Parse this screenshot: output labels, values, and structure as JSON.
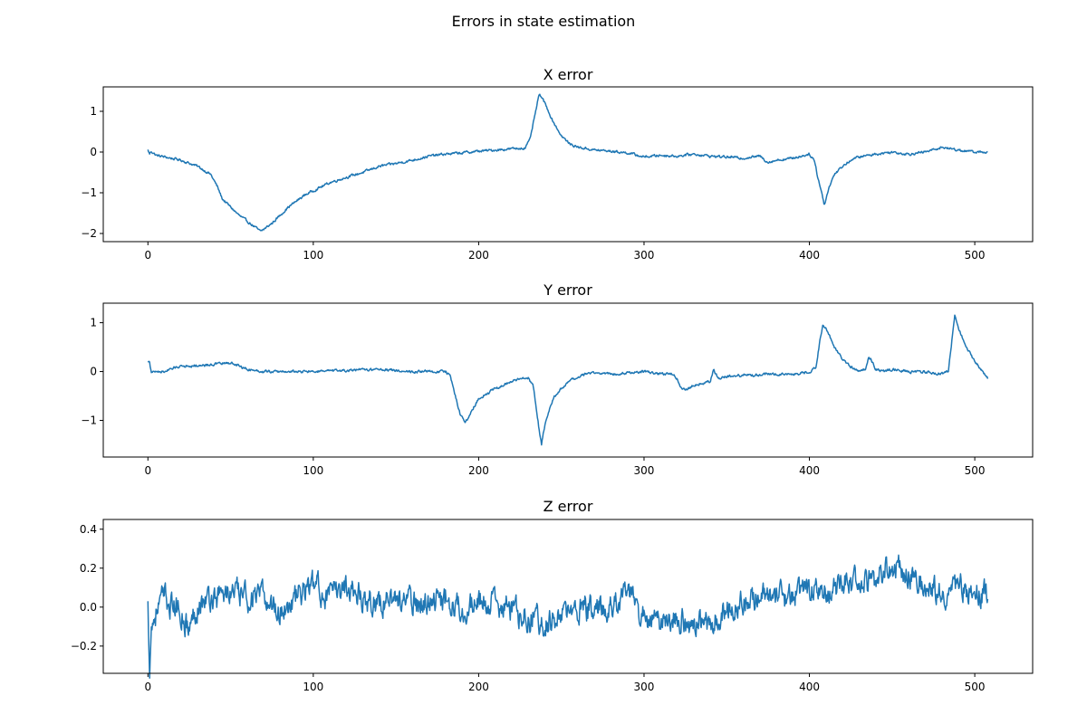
{
  "figure": {
    "title": "Errors in state estimation"
  },
  "chart_data": [
    {
      "type": "line",
      "title": "X error",
      "xlabel": "",
      "ylabel": "",
      "xlim": [
        -27,
        535
      ],
      "ylim": [
        -2.2,
        1.6
      ],
      "xticks": [
        0,
        100,
        200,
        300,
        400,
        500
      ],
      "yticks": [
        -2,
        -1,
        0,
        1
      ],
      "color": "#1f77b4",
      "noise": 0.045,
      "x": [
        0,
        1,
        2,
        5,
        10,
        20,
        30,
        38,
        42,
        45,
        50,
        55,
        60,
        65,
        68,
        70,
        75,
        80,
        85,
        90,
        95,
        100,
        110,
        120,
        130,
        140,
        150,
        160,
        170,
        180,
        190,
        200,
        210,
        220,
        228,
        231,
        234,
        236,
        237,
        240,
        245,
        250,
        255,
        260,
        270,
        280,
        290,
        300,
        310,
        320,
        330,
        340,
        350,
        360,
        370,
        375,
        380,
        390,
        400,
        403,
        405,
        408,
        409,
        412,
        415,
        420,
        425,
        430,
        440,
        450,
        460,
        470,
        480,
        490,
        500,
        508
      ],
      "y": [
        0.05,
        -0.05,
        0.02,
        -0.08,
        -0.12,
        -0.2,
        -0.35,
        -0.55,
        -0.85,
        -1.15,
        -1.35,
        -1.55,
        -1.7,
        -1.85,
        -1.95,
        -1.9,
        -1.75,
        -1.55,
        -1.35,
        -1.2,
        -1.05,
        -0.95,
        -0.75,
        -0.62,
        -0.5,
        -0.35,
        -0.28,
        -0.2,
        -0.1,
        -0.05,
        -0.02,
        0.02,
        0.05,
        0.08,
        0.1,
        0.3,
        0.9,
        1.3,
        1.42,
        1.2,
        0.75,
        0.4,
        0.2,
        0.12,
        0.05,
        0.02,
        -0.02,
        -0.12,
        -0.08,
        -0.1,
        -0.05,
        -0.1,
        -0.12,
        -0.15,
        -0.1,
        -0.25,
        -0.2,
        -0.15,
        -0.05,
        -0.2,
        -0.6,
        -1.1,
        -1.3,
        -0.85,
        -0.55,
        -0.35,
        -0.2,
        -0.12,
        -0.05,
        0.0,
        -0.05,
        0.0,
        0.12,
        0.05,
        0.0,
        0.0
      ]
    },
    {
      "type": "line",
      "title": "Y error",
      "xlabel": "",
      "ylabel": "",
      "xlim": [
        -27,
        535
      ],
      "ylim": [
        -1.75,
        1.4
      ],
      "xticks": [
        0,
        100,
        200,
        300,
        400,
        500
      ],
      "yticks": [
        -1,
        0,
        1
      ],
      "color": "#1f77b4",
      "noise": 0.04,
      "x": [
        0,
        1,
        2,
        5,
        10,
        20,
        30,
        40,
        50,
        60,
        70,
        80,
        100,
        120,
        140,
        160,
        170,
        180,
        183,
        186,
        189,
        192,
        195,
        200,
        210,
        220,
        230,
        233,
        235,
        237,
        238,
        240,
        243,
        246,
        250,
        255,
        260,
        265,
        270,
        280,
        290,
        300,
        310,
        318,
        320,
        322,
        325,
        330,
        340,
        342,
        345,
        350,
        360,
        380,
        390,
        400,
        404,
        406,
        408,
        410,
        415,
        420,
        425,
        430,
        434,
        436,
        438,
        440,
        445,
        450,
        460,
        470,
        480,
        484,
        486,
        488,
        490,
        495,
        500,
        505,
        508
      ],
      "y": [
        0.2,
        0.22,
        -0.02,
        0.0,
        0.0,
        0.12,
        0.12,
        0.15,
        0.18,
        0.05,
        0.0,
        0.0,
        0.0,
        0.02,
        0.05,
        0.0,
        0.0,
        0.0,
        -0.1,
        -0.5,
        -0.9,
        -1.05,
        -0.85,
        -0.55,
        -0.35,
        -0.2,
        -0.12,
        -0.3,
        -0.8,
        -1.3,
        -1.5,
        -1.1,
        -0.75,
        -0.5,
        -0.35,
        -0.2,
        -0.12,
        -0.05,
        -0.02,
        -0.05,
        -0.02,
        0.0,
        -0.05,
        -0.05,
        -0.15,
        -0.3,
        -0.38,
        -0.28,
        -0.2,
        0.05,
        -0.15,
        -0.1,
        -0.08,
        -0.05,
        -0.05,
        -0.02,
        0.1,
        0.55,
        0.95,
        0.9,
        0.5,
        0.25,
        0.1,
        0.02,
        0.05,
        0.3,
        0.2,
        0.05,
        0.0,
        0.05,
        0.0,
        0.0,
        -0.05,
        0.0,
        0.6,
        1.15,
        0.9,
        0.5,
        0.2,
        0.0,
        -0.15
      ]
    },
    {
      "type": "line",
      "title": "Z error",
      "xlabel": "",
      "ylabel": "",
      "xlim": [
        -27,
        535
      ],
      "ylim": [
        -0.34,
        0.45
      ],
      "xticks": [
        0,
        100,
        200,
        300,
        400,
        500
      ],
      "yticks": [
        -0.2,
        0.0,
        0.2,
        0.4
      ],
      "ytick_format": "fixed1",
      "color": "#1f77b4",
      "noise": 0.1,
      "x": [
        0,
        1,
        2,
        5,
        10,
        15,
        20,
        25,
        30,
        40,
        50,
        60,
        70,
        80,
        90,
        100,
        110,
        120,
        130,
        140,
        150,
        160,
        170,
        180,
        190,
        200,
        210,
        220,
        230,
        240,
        250,
        260,
        270,
        280,
        290,
        300,
        310,
        320,
        330,
        340,
        350,
        360,
        370,
        380,
        390,
        400,
        410,
        420,
        430,
        440,
        450,
        460,
        470,
        480,
        490,
        500,
        508
      ],
      "y": [
        0.0,
        -0.3,
        -0.1,
        -0.02,
        0.05,
        0.0,
        -0.02,
        -0.12,
        0.02,
        0.05,
        0.08,
        0.05,
        0.05,
        -0.02,
        0.05,
        0.12,
        0.05,
        0.12,
        0.05,
        0.02,
        0.05,
        0.02,
        0.02,
        0.05,
        0.0,
        0.02,
        0.02,
        -0.02,
        -0.05,
        -0.08,
        -0.05,
        -0.02,
        0.0,
        0.0,
        0.08,
        -0.05,
        -0.08,
        -0.05,
        -0.1,
        -0.08,
        0.0,
        0.02,
        0.05,
        0.05,
        0.05,
        0.08,
        0.1,
        0.12,
        0.12,
        0.15,
        0.22,
        0.18,
        0.12,
        0.08,
        0.1,
        0.08,
        0.05
      ]
    }
  ]
}
